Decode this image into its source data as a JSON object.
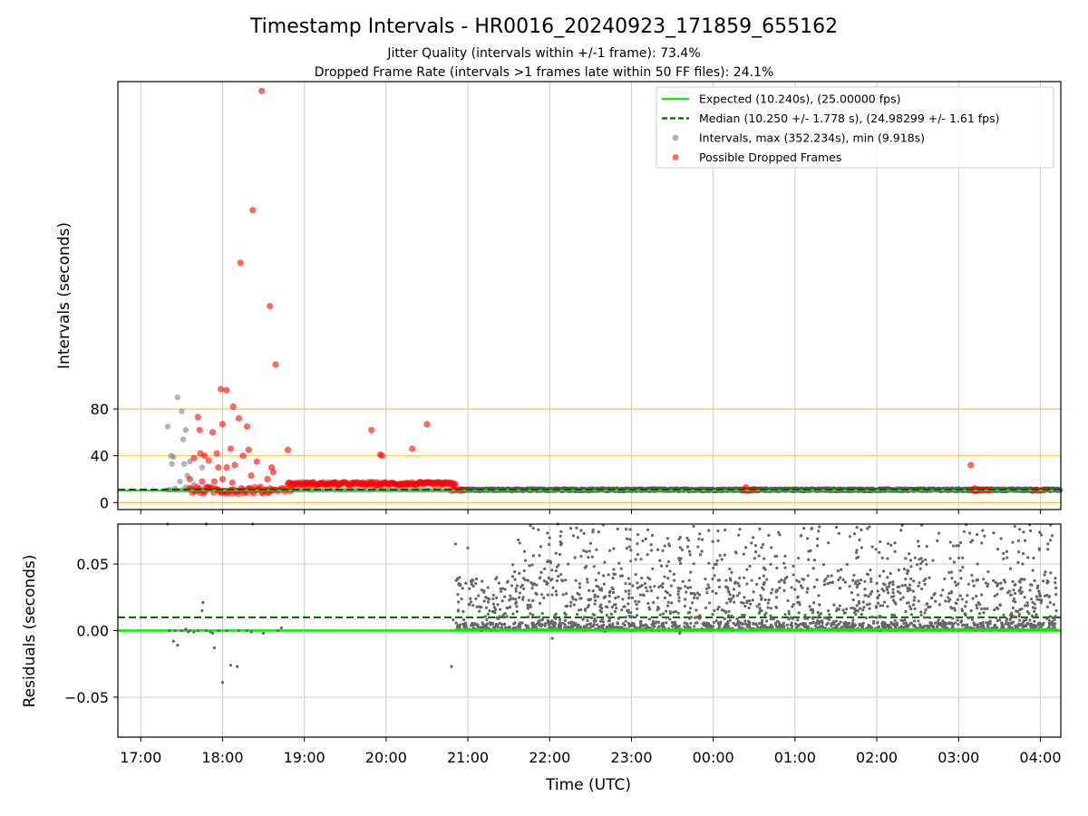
{
  "figure": {
    "title": "Timestamp Intervals - HR0016_20240923_171859_655162",
    "subtitle_1": "Jitter Quality (intervals within +/-1 frame): 73.4%",
    "subtitle_2": "Dropped Frame Rate (intervals >1 frames late within 50 FF files): 24.1%",
    "xlabel": "Time (UTC)"
  },
  "colors": {
    "expected": "#00ee00",
    "median": "#006400",
    "intervals": "#808080",
    "dropped": "#ff0000",
    "threshold": "#ffc040",
    "grid": "#cccccc"
  },
  "chart_data": [
    {
      "type": "scatter",
      "name": "intervals-panel",
      "ylabel": "Intervals (seconds)",
      "x_axis": {
        "type": "time",
        "range_hours": [
          16.72,
          28.25
        ],
        "ticks": [
          {
            "h": 17,
            "label": "17:00"
          },
          {
            "h": 18,
            "label": "18:00"
          },
          {
            "h": 19,
            "label": "19:00"
          },
          {
            "h": 20,
            "label": "20:00"
          },
          {
            "h": 21,
            "label": "21:00"
          },
          {
            "h": 22,
            "label": "22:00"
          },
          {
            "h": 23,
            "label": "23:00"
          },
          {
            "h": 24,
            "label": "00:00"
          },
          {
            "h": 25,
            "label": "01:00"
          },
          {
            "h": 26,
            "label": "02:00"
          },
          {
            "h": 27,
            "label": "03:00"
          },
          {
            "h": 28,
            "label": "04:00"
          }
        ]
      },
      "ylim": [
        -6,
        360
      ],
      "yticks": [
        0,
        40,
        80
      ],
      "threshold_lines": [
        0,
        40,
        80
      ],
      "expected_value": 10.24,
      "median_value": 10.25,
      "legend": {
        "placement": "top-right",
        "entries": [
          {
            "label": "Expected (10.240s), (25.00000 fps)",
            "style": "solid-line",
            "color": "#00ee00"
          },
          {
            "label": "Median (10.250 +/- 1.778 s), (24.98299 +/- 1.61 fps)",
            "style": "dashed-line",
            "color": "#006400"
          },
          {
            "label": "Intervals, max (352.234s), min (9.918s)",
            "style": "dot",
            "color": "#808080"
          },
          {
            "label": "Possible Dropped Frames",
            "style": "dot",
            "color": "#ff0000"
          }
        ]
      },
      "series": [
        {
          "name": "Intervals",
          "points": [
            [
              17.33,
              65
            ],
            [
              17.37,
              40
            ],
            [
              17.38,
              33
            ],
            [
              17.4,
              39
            ],
            [
              17.45,
              90
            ],
            [
              17.5,
              78
            ],
            [
              17.52,
              54
            ],
            [
              17.55,
              62
            ],
            [
              17.53,
              33
            ],
            [
              17.57,
              23
            ],
            [
              17.6,
              35
            ],
            [
              17.48,
              18
            ],
            [
              17.55,
              13
            ],
            [
              17.42,
              12
            ],
            [
              17.65,
              15
            ],
            [
              17.7,
              11
            ],
            [
              17.35,
              11
            ],
            [
              17.6,
              11
            ],
            [
              17.75,
              30
            ],
            [
              18.65,
              11
            ],
            [
              18.45,
              11
            ],
            [
              18.7,
              11
            ]
          ]
        },
        {
          "name": "Possible Dropped Frames",
          "points": [
            [
              18.48,
              352
            ],
            [
              18.37,
              250
            ],
            [
              18.22,
              205
            ],
            [
              18.58,
              168
            ],
            [
              18.65,
              118
            ],
            [
              17.98,
              97
            ],
            [
              18.05,
              96
            ],
            [
              18.13,
              82
            ],
            [
              18.2,
              72
            ],
            [
              18.3,
              65
            ],
            [
              18.0,
              67
            ],
            [
              17.7,
              73
            ],
            [
              17.88,
              60
            ],
            [
              17.72,
              62
            ],
            [
              18.1,
              46
            ],
            [
              18.32,
              45
            ],
            [
              18.8,
              45
            ],
            [
              17.83,
              36
            ],
            [
              17.78,
              40
            ],
            [
              18.25,
              40
            ],
            [
              17.93,
              42
            ],
            [
              17.95,
              30
            ],
            [
              18.05,
              30
            ],
            [
              18.6,
              30
            ],
            [
              18.15,
              32
            ],
            [
              17.65,
              38
            ],
            [
              17.73,
              42
            ],
            [
              17.6,
              20
            ],
            [
              17.75,
              18
            ],
            [
              17.9,
              18
            ],
            [
              18.0,
              20
            ],
            [
              18.12,
              17
            ],
            [
              18.35,
              23
            ],
            [
              18.42,
              35
            ],
            [
              18.55,
              20
            ],
            [
              18.62,
              26
            ],
            [
              19.82,
              62
            ],
            [
              19.95,
              40
            ],
            [
              19.93,
              41
            ],
            [
              20.32,
              46
            ],
            [
              20.5,
              67
            ],
            [
              27.15,
              32
            ],
            [
              27.2,
              12
            ],
            [
              24.4,
              13
            ]
          ],
          "clusters": [
            {
              "x_start": 17.6,
              "x_end": 18.6,
              "y": 10.5,
              "count": 60,
              "jitter": 3
            },
            {
              "x_start": 18.6,
              "x_end": 18.85,
              "y": 11,
              "count": 10,
              "jitter": 1.5
            },
            {
              "x_start": 18.8,
              "x_end": 20.85,
              "y": 16,
              "count": 170,
              "jitter": 1.4
            },
            {
              "x_start": 20.8,
              "x_end": 20.95,
              "y": 10.5,
              "count": 8,
              "jitter": 0.6
            },
            {
              "x_start": 24.35,
              "x_end": 24.55,
              "y": 10.5,
              "count": 10,
              "jitter": 0.6
            },
            {
              "x_start": 27.15,
              "x_end": 27.4,
              "y": 10.5,
              "count": 14,
              "jitter": 0.6
            },
            {
              "x_start": 27.9,
              "x_end": 28.05,
              "y": 10.5,
              "count": 6,
              "jitter": 0.5
            }
          ]
        },
        {
          "name": "Intervals band",
          "description_band": {
            "x_start": 20.9,
            "x_end": 28.25,
            "y_low": 9.9,
            "y_high": 12.0
          }
        }
      ]
    },
    {
      "type": "scatter",
      "name": "residuals-panel",
      "ylabel": "Residuals (seconds)",
      "ylim": [
        -0.08,
        0.08
      ],
      "yticks": [
        -0.05,
        0.0,
        0.05
      ],
      "ytick_labels": [
        "−0.05",
        "0.00",
        "0.05"
      ],
      "expected_value": 0.0,
      "median_value": 0.01,
      "series": [
        {
          "name": "Residuals early",
          "points": [
            [
              17.33,
              0.08
            ],
            [
              17.8,
              0.08
            ],
            [
              18.37,
              0.08
            ],
            [
              17.35,
              0.0
            ],
            [
              17.4,
              -0.008
            ],
            [
              17.45,
              -0.011
            ],
            [
              17.5,
              0.0
            ],
            [
              17.55,
              0.001
            ],
            [
              17.6,
              0.0
            ],
            [
              17.65,
              -0.001
            ],
            [
              17.7,
              0.0
            ],
            [
              17.75,
              0.015
            ],
            [
              17.76,
              0.021
            ],
            [
              17.8,
              0.0
            ],
            [
              17.85,
              -0.001
            ],
            [
              17.9,
              -0.013
            ],
            [
              17.95,
              0.0
            ],
            [
              18.0,
              -0.039
            ],
            [
              18.1,
              -0.026
            ],
            [
              18.18,
              -0.027
            ],
            [
              18.2,
              0.0
            ],
            [
              18.3,
              0.0
            ],
            [
              18.35,
              -0.001
            ],
            [
              18.5,
              -0.002
            ],
            [
              18.68,
              0.0
            ],
            [
              18.72,
              0.002
            ],
            [
              17.42,
              0.0
            ],
            [
              17.58,
              -0.001
            ],
            [
              17.88,
              -0.002
            ],
            [
              18.05,
              0.0
            ]
          ]
        },
        {
          "name": "Residuals late",
          "points": [
            [
              20.8,
              -0.027
            ],
            [
              20.82,
              0.008
            ],
            [
              20.85,
              0.065
            ],
            [
              20.9,
              0.04
            ],
            [
              21.0,
              0.062
            ],
            [
              22.1,
              0.08
            ]
          ],
          "clusters": [
            {
              "x_start": 20.85,
              "x_end": 28.2,
              "dist": "band",
              "y_low": 0.0,
              "y_high": 0.006,
              "count": 900
            },
            {
              "x_start": 20.85,
              "x_end": 28.2,
              "dist": "band",
              "y_low": 0.006,
              "y_high": 0.04,
              "count": 900
            },
            {
              "x_start": 21.5,
              "x_end": 28.2,
              "dist": "band",
              "y_low": 0.04,
              "y_high": 0.08,
              "count": 330
            },
            {
              "x_start": 22.0,
              "x_end": 24.0,
              "dist": "band",
              "y_low": -0.006,
              "y_high": 0.0,
              "count": 4
            }
          ]
        }
      ]
    }
  ]
}
